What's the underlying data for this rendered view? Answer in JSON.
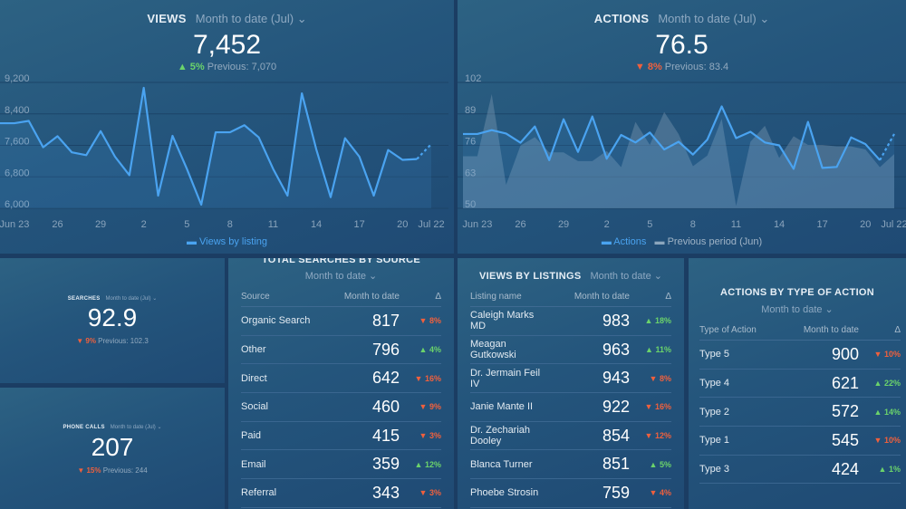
{
  "colors": {
    "line": "#4aa3f0",
    "up": "#6bd36b",
    "down": "#f0603d",
    "prev_area": "#8ca6bd"
  },
  "views": {
    "title": "VIEWS",
    "period": "Month to date (Jul)",
    "value": "7,452",
    "change_icon": "triangle-up",
    "change": "5%",
    "previous": "Previous: 7,070",
    "legend": "Views by listing",
    "chart_data": {
      "type": "line",
      "yticks": [
        "9,200",
        "8,400",
        "7,600",
        "6,800",
        "6,000"
      ],
      "ylim": [
        6000,
        9200
      ],
      "xticks": [
        "Jun 23",
        "26",
        "29",
        "2",
        "5",
        "8",
        "11",
        "14",
        "17",
        "20",
        "Jul 22"
      ],
      "x": [
        "Jun 22",
        "Jun 23",
        "Jun 24",
        "Jun 25",
        "Jun 26",
        "Jun 27",
        "Jun 28",
        "Jun 29",
        "Jun 30",
        "Jul 1",
        "Jul 2",
        "Jul 3",
        "Jul 4",
        "Jul 5",
        "Jul 6",
        "Jul 7",
        "Jul 8",
        "Jul 9",
        "Jul 10",
        "Jul 11",
        "Jul 12",
        "Jul 13",
        "Jul 14",
        "Jul 15",
        "Jul 16",
        "Jul 17",
        "Jul 18",
        "Jul 19",
        "Jul 20",
        "Jul 21",
        "Jul 22"
      ],
      "series": [
        {
          "name": "Views by listing",
          "values": [
            8070,
            8070,
            8130,
            7460,
            7740,
            7330,
            7260,
            7870,
            7220,
            6750,
            8970,
            6230,
            7750,
            6910,
            6000,
            7840,
            7840,
            8020,
            7710,
            6910,
            6230,
            8830,
            7410,
            6190,
            7690,
            7220,
            6230,
            7390,
            7140,
            7160,
            7540
          ]
        }
      ]
    }
  },
  "actions": {
    "title": "ACTIONS",
    "period": "Month to date (Jul)",
    "value": "76.5",
    "change_icon": "triangle-down",
    "change": "8%",
    "previous": "Previous: 83.4",
    "legend_actions": "Actions",
    "legend_prev": "Previous period (Jun)",
    "chart_data": {
      "type": "line",
      "yticks": [
        "102",
        "89",
        "76",
        "63",
        "50"
      ],
      "ylim": [
        50,
        102
      ],
      "xticks": [
        "Jun 23",
        "26",
        "29",
        "2",
        "5",
        "8",
        "11",
        "14",
        "17",
        "20",
        "Jul 22"
      ],
      "series": [
        {
          "name": "Actions",
          "values": [
            79.2,
            79.2,
            80.8,
            79.4,
            75.6,
            82.3,
            68.4,
            85.3,
            71.8,
            86.4,
            69.0,
            78.8,
            75.7,
            79.8,
            72.8,
            76.0,
            70.7,
            76.9,
            90.6,
            77.5,
            80.1,
            75.7,
            74.5,
            64.8,
            84.2,
            65.2,
            65.6,
            77.8,
            75.0,
            68.4,
            79.2
          ]
        },
        {
          "name": "Previous period (Jun)",
          "values": [
            70.0,
            70.0,
            95.7,
            58.2,
            74.4,
            77.9,
            71.6,
            71.6,
            68.0,
            68.0,
            72.2,
            65.5,
            84.2,
            74.7,
            88.3,
            79.2,
            65.9,
            70.3,
            85.5,
            49.5,
            76.0,
            82.6,
            69.3,
            78.3,
            74.7,
            74.7,
            74.1,
            74.1,
            72.8,
            65.5,
            70.9
          ]
        }
      ]
    }
  },
  "searches": {
    "title": "SEARCHES",
    "period": "Month to date (Jul)",
    "value": "92.9",
    "change": "9%",
    "previous": "Previous: 102.3"
  },
  "phone_calls": {
    "title": "PHONE CALLS",
    "period": "Month to date (Jul)",
    "value": "207",
    "change": "15%",
    "previous": "Previous: 244"
  },
  "by_source": {
    "title": "TOTAL SEARCHES BY SOURCE",
    "period": "Month to date",
    "cols": [
      "Source",
      "Month to date",
      "Δ"
    ],
    "rows": [
      {
        "name": "Organic Search",
        "value": "817",
        "dir": "down",
        "delta": "8%"
      },
      {
        "name": "Other",
        "value": "796",
        "dir": "up",
        "delta": "4%"
      },
      {
        "name": "Direct",
        "value": "642",
        "dir": "down",
        "delta": "16%"
      },
      {
        "name": "Social",
        "value": "460",
        "dir": "down",
        "delta": "9%"
      },
      {
        "name": "Paid",
        "value": "415",
        "dir": "down",
        "delta": "3%"
      },
      {
        "name": "Email",
        "value": "359",
        "dir": "up",
        "delta": "12%"
      },
      {
        "name": "Referral",
        "value": "343",
        "dir": "down",
        "delta": "3%"
      }
    ]
  },
  "by_listing": {
    "title": "VIEWS BY LISTINGS",
    "period": "Month to date",
    "cols": [
      "Listing name",
      "Month to date",
      "Δ"
    ],
    "rows": [
      {
        "name": "Caleigh Marks MD",
        "value": "983",
        "dir": "up",
        "delta": "18%"
      },
      {
        "name": "Meagan Gutkowski",
        "value": "963",
        "dir": "up",
        "delta": "11%"
      },
      {
        "name": "Dr. Jermain Feil IV",
        "value": "943",
        "dir": "down",
        "delta": "8%"
      },
      {
        "name": "Janie Mante II",
        "value": "922",
        "dir": "down",
        "delta": "16%"
      },
      {
        "name": "Dr. Zechariah Dooley",
        "value": "854",
        "dir": "down",
        "delta": "12%"
      },
      {
        "name": "Blanca Turner",
        "value": "851",
        "dir": "up",
        "delta": "5%"
      },
      {
        "name": "Phoebe Strosin",
        "value": "759",
        "dir": "down",
        "delta": "4%"
      }
    ]
  },
  "by_action": {
    "title": "ACTIONS BY TYPE OF ACTION",
    "period": "Month to date",
    "cols": [
      "Type of Action",
      "Month to date",
      "Δ"
    ],
    "rows": [
      {
        "name": "Type 5",
        "value": "900",
        "dir": "down",
        "delta": "10%"
      },
      {
        "name": "Type 4",
        "value": "621",
        "dir": "up",
        "delta": "22%"
      },
      {
        "name": "Type 2",
        "value": "572",
        "dir": "up",
        "delta": "14%"
      },
      {
        "name": "Type 1",
        "value": "545",
        "dir": "down",
        "delta": "10%"
      },
      {
        "name": "Type 3",
        "value": "424",
        "dir": "up",
        "delta": "1%"
      }
    ]
  }
}
